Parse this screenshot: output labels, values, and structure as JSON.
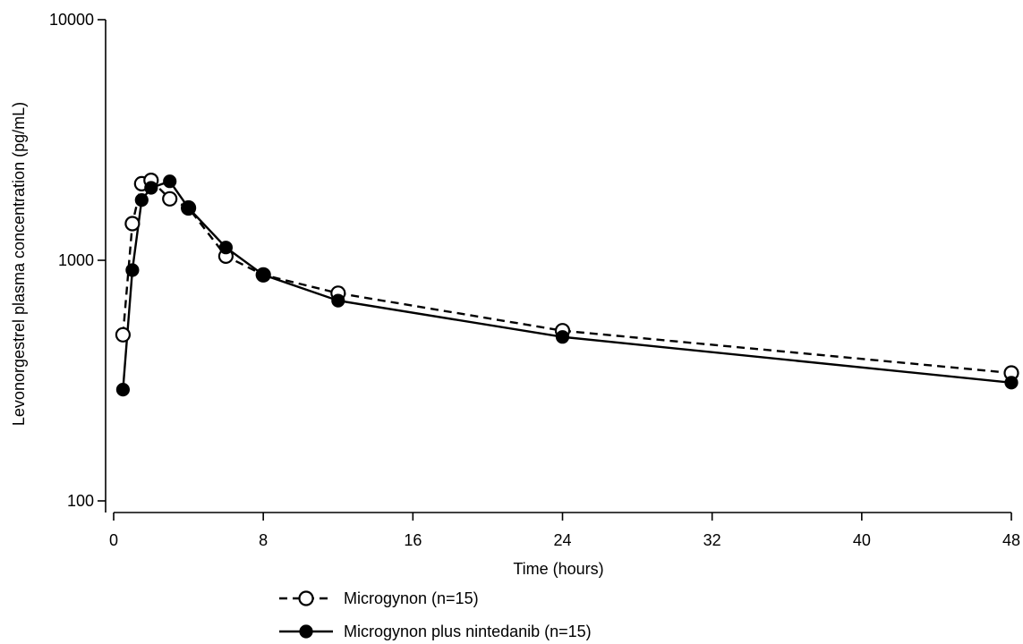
{
  "chart_data": {
    "type": "line",
    "title": "",
    "xlabel": "Time (hours)",
    "ylabel": "Levonorgestrel plasma concentration (pg/mL)",
    "x_scale": "linear",
    "y_scale": "log",
    "xlim": [
      0,
      48
    ],
    "ylim": [
      100,
      10000
    ],
    "x_ticks": [
      0,
      8,
      16,
      24,
      32,
      40,
      48
    ],
    "y_ticks": [
      100,
      1000,
      10000
    ],
    "grid": false,
    "legend_position": "bottom-left",
    "series": [
      {
        "name": "Microgynon (n=15)",
        "line_style": "dashed",
        "marker": "open-circle",
        "x": [
          0.5,
          1,
          1.5,
          2,
          3,
          4,
          6,
          8,
          12,
          24,
          48
        ],
        "y": [
          490,
          1420,
          2080,
          2150,
          1800,
          1650,
          1040,
          870,
          730,
          510,
          340
        ]
      },
      {
        "name": "Microgynon plus nintedanib (n=15)",
        "line_style": "solid",
        "marker": "filled-circle",
        "x": [
          0.5,
          1,
          1.5,
          2,
          3,
          4,
          6,
          8,
          12,
          24,
          48
        ],
        "y": [
          290,
          910,
          1780,
          2000,
          2130,
          1650,
          1130,
          870,
          680,
          480,
          310
        ]
      }
    ]
  }
}
